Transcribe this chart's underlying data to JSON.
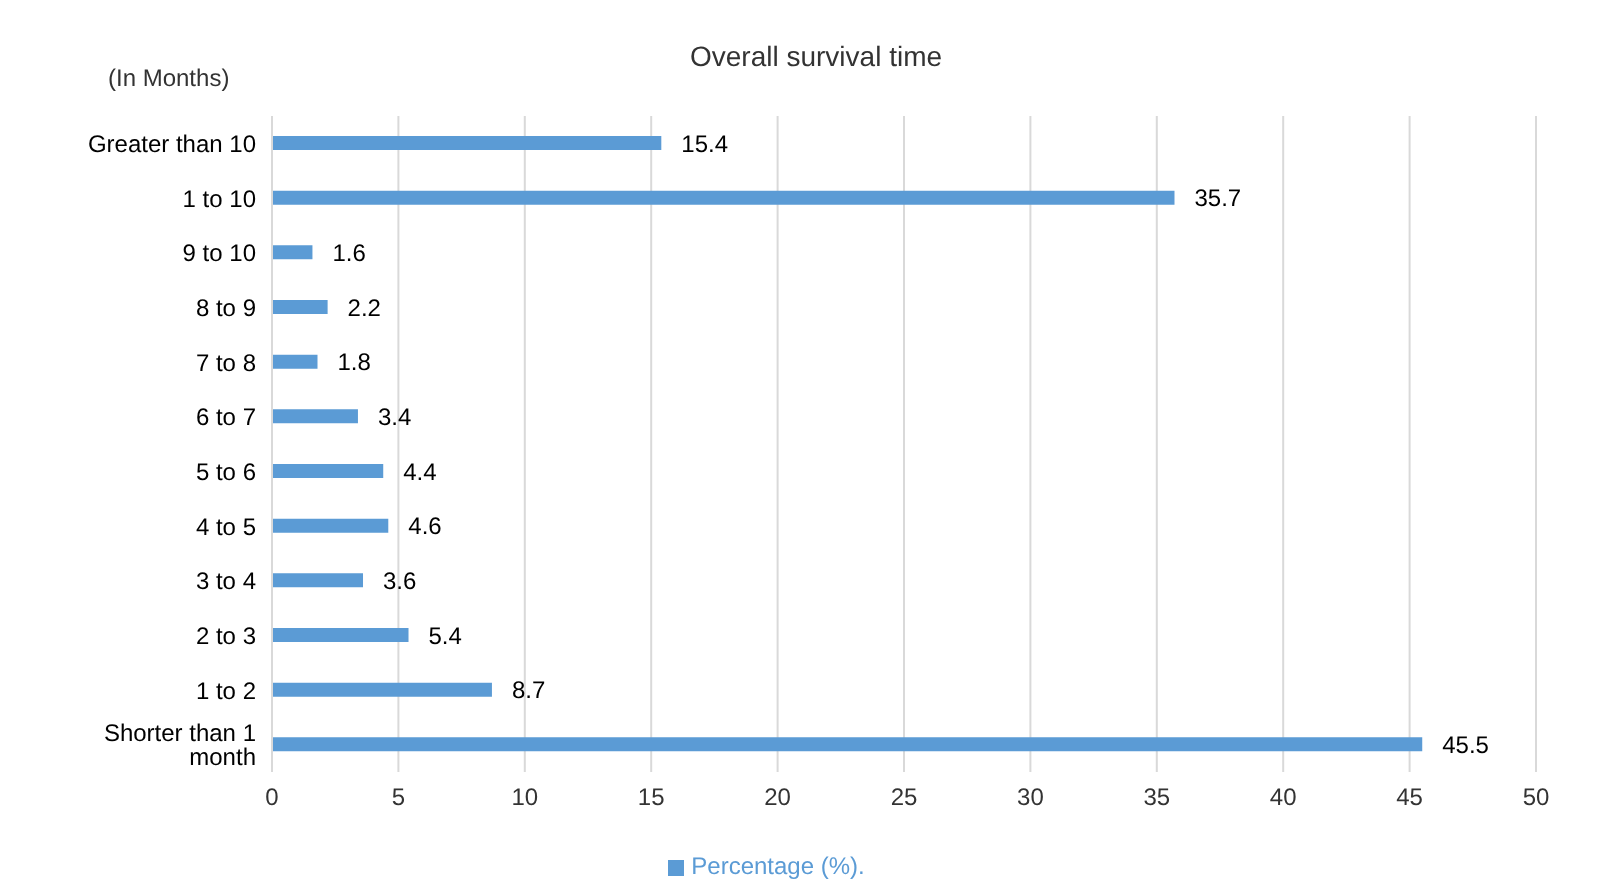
{
  "chart_data": {
    "type": "bar",
    "orientation": "horizontal",
    "title": "Overall survival time",
    "ylabel": "(In Months)",
    "categories": [
      "Greater than 10",
      "1 to 10",
      "9 to 10",
      "8 to 9",
      "7 to 8",
      "6 to 7",
      "5 to 6",
      "4 to 5",
      "3 to 4",
      "2 to 3",
      "1 to 2",
      "Shorter than 1 month"
    ],
    "series": [
      {
        "name": "Percentage (%).",
        "color": "#5b9bd5",
        "values": [
          15.4,
          35.7,
          1.6,
          2.2,
          1.8,
          3.4,
          4.4,
          4.6,
          3.6,
          5.4,
          8.7,
          45.5
        ]
      }
    ],
    "xlim": [
      0,
      50
    ],
    "xticks": [
      0,
      5,
      10,
      15,
      20,
      25,
      30,
      35,
      40,
      45,
      50
    ],
    "grid": "x",
    "legend": "bottom",
    "data_labels": true
  }
}
